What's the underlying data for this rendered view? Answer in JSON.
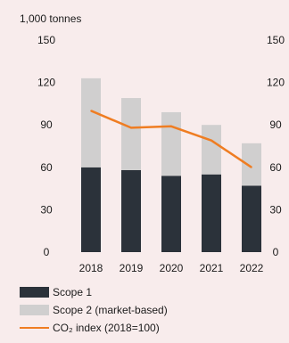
{
  "chart_data": {
    "type": "bar",
    "title": "",
    "y_unit_label": "1,000 tonnes",
    "categories": [
      "2018",
      "2019",
      "2020",
      "2021",
      "2022"
    ],
    "ylim": [
      0,
      150
    ],
    "y_ticks": [
      0,
      30,
      60,
      90,
      120,
      150
    ],
    "y2_ticks": [
      0,
      30,
      60,
      90,
      120,
      150
    ],
    "stacked": true,
    "grid": false,
    "legend_position": "bottom-left",
    "series": [
      {
        "name": "Scope 1",
        "kind": "bar",
        "color": "#2b323a",
        "values": [
          60,
          58,
          54,
          55,
          47
        ]
      },
      {
        "name": "Scope 2 (market-based)",
        "kind": "bar",
        "color": "#d0cfcf",
        "values": [
          63,
          51,
          45,
          35,
          30
        ]
      },
      {
        "name": "CO2 index (2018=100)",
        "kind": "line",
        "axis": "right",
        "color": "#ef7d22",
        "values": [
          100,
          88,
          89,
          79,
          60
        ]
      }
    ]
  },
  "legend": {
    "items": [
      {
        "label": "Scope 1",
        "color": "#2b323a",
        "type": "box"
      },
      {
        "label": "Scope 2 (market-based)",
        "color": "#d0cfcf",
        "type": "box"
      },
      {
        "label": "CO₂ index (2018=100)",
        "color": "#ef7d22",
        "type": "line"
      }
    ]
  }
}
